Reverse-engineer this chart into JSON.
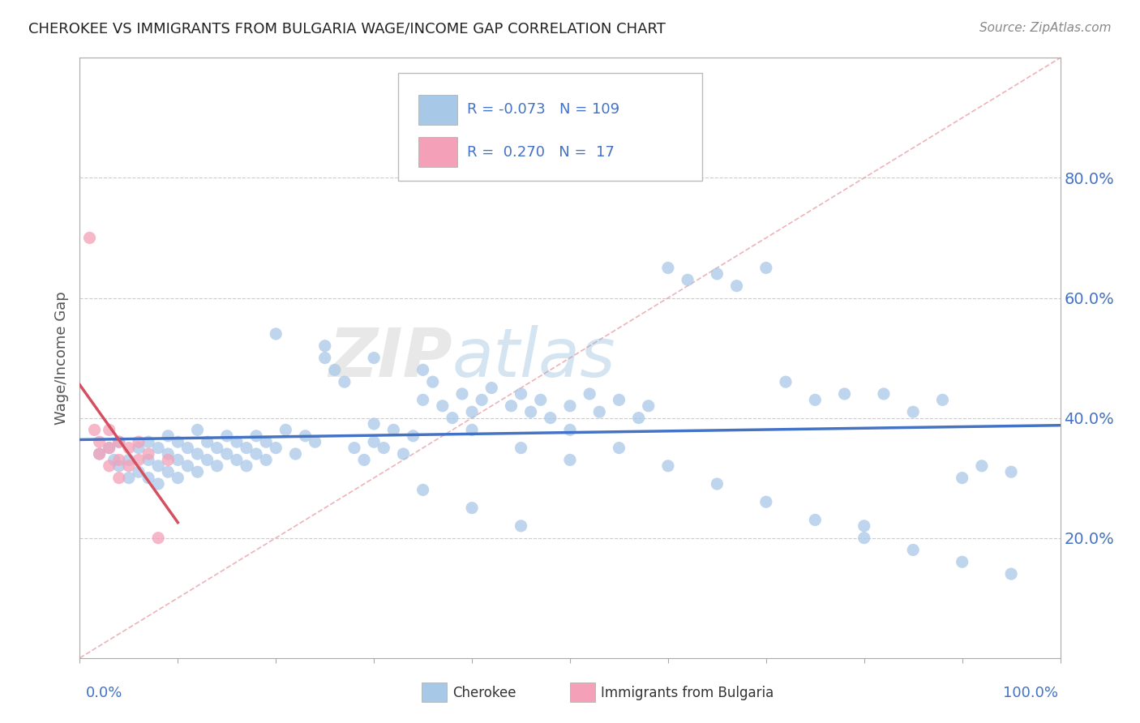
{
  "title": "CHEROKEE VS IMMIGRANTS FROM BULGARIA WAGE/INCOME GAP CORRELATION CHART",
  "source": "Source: ZipAtlas.com",
  "ylabel": "Wage/Income Gap",
  "watermark": "ZIPatlas",
  "cherokee_color": "#a8c8e8",
  "bulgaria_color": "#f4a0b8",
  "cherokee_line_color": "#4472c4",
  "bulgaria_line_color": "#d45060",
  "diag_color": "#e8a0a8",
  "grid_color": "#cccccc",
  "text_color": "#4472c4",
  "label_color": "#333333",
  "background_color": "#ffffff",
  "xlim": [
    0.0,
    1.0
  ],
  "ylim": [
    0.0,
    1.0
  ],
  "right_yticks": [
    0.2,
    0.4,
    0.6,
    0.8
  ],
  "right_yticklabels": [
    "20.0%",
    "40.0%",
    "60.0%",
    "80.0%"
  ],
  "cherokee_x": [
    0.02,
    0.03,
    0.035,
    0.04,
    0.04,
    0.05,
    0.05,
    0.06,
    0.06,
    0.07,
    0.07,
    0.07,
    0.08,
    0.08,
    0.08,
    0.09,
    0.09,
    0.09,
    0.1,
    0.1,
    0.1,
    0.11,
    0.11,
    0.12,
    0.12,
    0.12,
    0.13,
    0.13,
    0.14,
    0.14,
    0.15,
    0.15,
    0.16,
    0.16,
    0.17,
    0.17,
    0.18,
    0.18,
    0.19,
    0.19,
    0.2,
    0.21,
    0.22,
    0.23,
    0.24,
    0.25,
    0.26,
    0.27,
    0.28,
    0.29,
    0.3,
    0.3,
    0.31,
    0.32,
    0.33,
    0.34,
    0.35,
    0.36,
    0.37,
    0.38,
    0.39,
    0.4,
    0.41,
    0.42,
    0.44,
    0.45,
    0.46,
    0.47,
    0.48,
    0.5,
    0.52,
    0.53,
    0.55,
    0.57,
    0.58,
    0.6,
    0.62,
    0.65,
    0.67,
    0.7,
    0.72,
    0.75,
    0.78,
    0.8,
    0.82,
    0.85,
    0.88,
    0.9,
    0.92,
    0.95,
    0.5,
    0.55,
    0.6,
    0.65,
    0.7,
    0.75,
    0.8,
    0.85,
    0.9,
    0.95,
    0.2,
    0.25,
    0.3,
    0.35,
    0.4,
    0.45,
    0.5,
    0.35,
    0.4,
    0.45
  ],
  "cherokee_y": [
    0.34,
    0.35,
    0.33,
    0.32,
    0.36,
    0.3,
    0.33,
    0.31,
    0.35,
    0.3,
    0.33,
    0.36,
    0.29,
    0.32,
    0.35,
    0.31,
    0.34,
    0.37,
    0.3,
    0.33,
    0.36,
    0.32,
    0.35,
    0.31,
    0.34,
    0.38,
    0.33,
    0.36,
    0.32,
    0.35,
    0.34,
    0.37,
    0.33,
    0.36,
    0.32,
    0.35,
    0.34,
    0.37,
    0.33,
    0.36,
    0.35,
    0.38,
    0.34,
    0.37,
    0.36,
    0.5,
    0.48,
    0.46,
    0.35,
    0.33,
    0.36,
    0.39,
    0.35,
    0.38,
    0.34,
    0.37,
    0.43,
    0.46,
    0.42,
    0.4,
    0.44,
    0.41,
    0.43,
    0.45,
    0.42,
    0.44,
    0.41,
    0.43,
    0.4,
    0.42,
    0.44,
    0.41,
    0.43,
    0.4,
    0.42,
    0.65,
    0.63,
    0.64,
    0.62,
    0.65,
    0.46,
    0.43,
    0.44,
    0.22,
    0.44,
    0.41,
    0.43,
    0.3,
    0.32,
    0.31,
    0.38,
    0.35,
    0.32,
    0.29,
    0.26,
    0.23,
    0.2,
    0.18,
    0.16,
    0.14,
    0.54,
    0.52,
    0.5,
    0.48,
    0.38,
    0.35,
    0.33,
    0.28,
    0.25,
    0.22
  ],
  "bulgaria_x": [
    0.01,
    0.015,
    0.02,
    0.02,
    0.03,
    0.03,
    0.03,
    0.04,
    0.04,
    0.04,
    0.05,
    0.05,
    0.06,
    0.06,
    0.07,
    0.08,
    0.09
  ],
  "bulgaria_y": [
    0.7,
    0.38,
    0.36,
    0.34,
    0.32,
    0.35,
    0.38,
    0.3,
    0.33,
    0.36,
    0.32,
    0.35,
    0.33,
    0.36,
    0.34,
    0.2,
    0.33
  ]
}
